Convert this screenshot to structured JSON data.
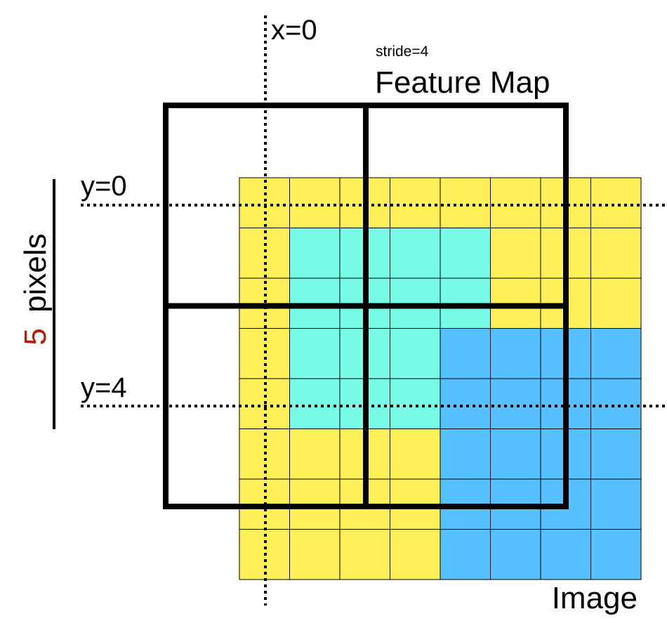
{
  "diagram": {
    "x_axis_label": "x=0",
    "y_labels": [
      "y=0",
      "y=4"
    ],
    "stride_label": "stride=4",
    "feature_map_label": "Feature Map",
    "image_label": "Image",
    "pixels_number": "5",
    "pixels_word": "pixels",
    "image_grid": {
      "rows": 8,
      "cols": 8,
      "cells": [
        [
          "Y",
          "Y",
          "Y",
          "Y",
          "Y",
          "Y",
          "Y",
          "Y"
        ],
        [
          "Y",
          "C",
          "C",
          "C",
          "C",
          "Y",
          "Y",
          "Y"
        ],
        [
          "Y",
          "C",
          "C",
          "C",
          "C",
          "Y",
          "Y",
          "Y"
        ],
        [
          "Y",
          "C",
          "C",
          "C",
          "B",
          "B",
          "B",
          "B"
        ],
        [
          "Y",
          "C",
          "C",
          "C",
          "B",
          "B",
          "B",
          "B"
        ],
        [
          "Y",
          "Y",
          "Y",
          "Y",
          "B",
          "B",
          "B",
          "B"
        ],
        [
          "Y",
          "Y",
          "Y",
          "Y",
          "B",
          "B",
          "B",
          "B"
        ],
        [
          "Y",
          "Y",
          "Y",
          "Y",
          "B",
          "B",
          "B",
          "B"
        ]
      ]
    },
    "feature_map_grid": {
      "rows": 2,
      "cols": 2
    },
    "colors": {
      "Y": "#fff05a",
      "C": "#78fbe6",
      "B": "#57c0ff",
      "pixels_number": "#b81c0c",
      "lines": "#000000"
    }
  }
}
